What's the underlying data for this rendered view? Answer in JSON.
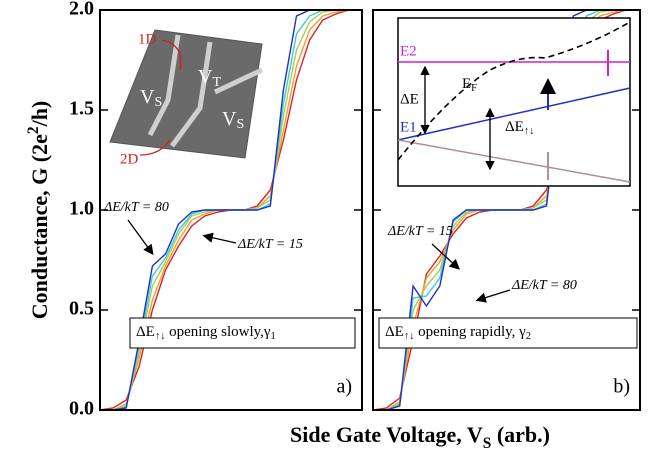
{
  "chart_data": [
    {
      "type": "line",
      "ylabel": [
        "Conductance, G  (2e",
        "2",
        "/h)"
      ],
      "xlabel": [
        "Side Gate Voltage, V",
        "S",
        " (arb.)"
      ],
      "panel_label": "a)",
      "box_label": [
        "ΔE",
        "↑↓",
        " opening slowly,γ",
        "1"
      ],
      "annotations": [
        "ΔE/kT = 80",
        "ΔE/kT = 15"
      ],
      "inset": {
        "labels": [
          "1D",
          "2D"
        ],
        "gates": [
          [
            "V",
            "T"
          ],
          [
            "V",
            "S"
          ],
          [
            "V",
            "S"
          ]
        ]
      },
      "ylim": [
        0,
        2
      ],
      "yticks": [
        {
          "value": 0,
          "label": "0.0"
        },
        {
          "value": 0.5,
          "label": "0.5"
        },
        {
          "value": 1,
          "label": "1.0"
        },
        {
          "value": 1.5,
          "label": "1.5"
        },
        {
          "value": 2,
          "label": "2.0"
        }
      ],
      "xlim": [
        0,
        20
      ],
      "x": [
        0,
        1,
        2,
        3,
        4,
        5,
        6,
        7,
        8,
        9,
        10,
        11,
        12,
        13,
        14,
        15,
        16,
        17,
        18,
        19,
        20
      ],
      "series": [
        {
          "color": "#e02020",
          "values": [
            0,
            0.01,
            0.05,
            0.22,
            0.5,
            0.7,
            0.82,
            0.92,
            0.97,
            0.99,
            1,
            1,
            1.02,
            1.1,
            1.35,
            1.65,
            1.85,
            1.95,
            1.98,
            2,
            2
          ]
        },
        {
          "color": "#f0a030",
          "values": [
            0,
            0,
            0.03,
            0.26,
            0.55,
            0.72,
            0.85,
            0.95,
            0.98,
            1,
            1,
            1,
            1.01,
            1.07,
            1.4,
            1.72,
            1.9,
            1.97,
            1.99,
            2,
            2
          ]
        },
        {
          "color": "#a0d060",
          "values": [
            0,
            0,
            0.02,
            0.29,
            0.62,
            0.74,
            0.88,
            0.97,
            0.99,
            1,
            1,
            1,
            1.01,
            1.05,
            1.47,
            1.8,
            1.94,
            1.99,
            2,
            2,
            2
          ]
        },
        {
          "color": "#40c8e0",
          "values": [
            0,
            0,
            0.015,
            0.32,
            0.67,
            0.76,
            0.9,
            0.98,
            1,
            1,
            1,
            1,
            1,
            1.03,
            1.53,
            1.88,
            1.97,
            2,
            2,
            2,
            2
          ]
        },
        {
          "color": "#2030c0",
          "values": [
            0,
            0,
            0.01,
            0.35,
            0.72,
            0.78,
            0.93,
            0.99,
            1,
            1,
            1,
            1,
            1,
            1.02,
            1.6,
            1.97,
            2,
            2,
            2,
            2,
            2
          ]
        }
      ]
    },
    {
      "type": "line",
      "panel_label": "b)",
      "box_label": [
        "ΔE",
        "↑↓",
        " opening rapidly, γ",
        "2"
      ],
      "annotations": [
        "ΔE/kT = 15",
        "ΔE/kT = 80"
      ],
      "inset": {
        "labels": [
          "E2",
          "ΔE",
          "E1"
        ],
        "fermi": [
          "E",
          "F"
        ],
        "split": [
          "ΔE",
          "↑↓"
        ]
      },
      "ylim": [
        0,
        2
      ],
      "yticks": [
        0,
        0.5,
        1,
        1.5,
        2
      ],
      "xlim": [
        0,
        20
      ],
      "x": [
        0,
        1,
        2,
        3,
        4,
        5,
        6,
        7,
        8,
        9,
        10,
        11,
        12,
        13,
        14,
        15,
        16,
        17,
        18,
        19,
        20
      ],
      "series": [
        {
          "color": "#e02020",
          "values": [
            0,
            0.01,
            0.06,
            0.35,
            0.68,
            0.77,
            0.88,
            0.96,
            0.99,
            1,
            1,
            1,
            1.02,
            1.1,
            1.35,
            1.65,
            1.85,
            1.95,
            1.98,
            2,
            2
          ]
        },
        {
          "color": "#f0a030",
          "values": [
            0,
            0,
            0.04,
            0.42,
            0.66,
            0.74,
            0.9,
            0.98,
            1,
            1,
            1,
            1,
            1.01,
            1.07,
            1.4,
            1.72,
            1.9,
            1.97,
            1.99,
            2,
            2
          ]
        },
        {
          "color": "#a0d060",
          "values": [
            0,
            0,
            0.03,
            0.5,
            0.62,
            0.7,
            0.92,
            0.99,
            1,
            1,
            1,
            1,
            1.01,
            1.05,
            1.47,
            1.8,
            1.94,
            1.99,
            2,
            2,
            2
          ]
        },
        {
          "color": "#40c8e0",
          "values": [
            0,
            0,
            0.025,
            0.56,
            0.57,
            0.66,
            0.94,
            1,
            1,
            1,
            1,
            1,
            1,
            1.03,
            1.53,
            1.88,
            1.97,
            2,
            2,
            2,
            2
          ]
        },
        {
          "color": "#2030c0",
          "values": [
            0,
            0,
            0.02,
            0.62,
            0.52,
            0.62,
            0.95,
            1,
            1,
            1,
            1,
            1,
            1,
            1.02,
            1.6,
            1.97,
            2,
            2,
            2,
            2,
            2
          ]
        }
      ]
    }
  ]
}
